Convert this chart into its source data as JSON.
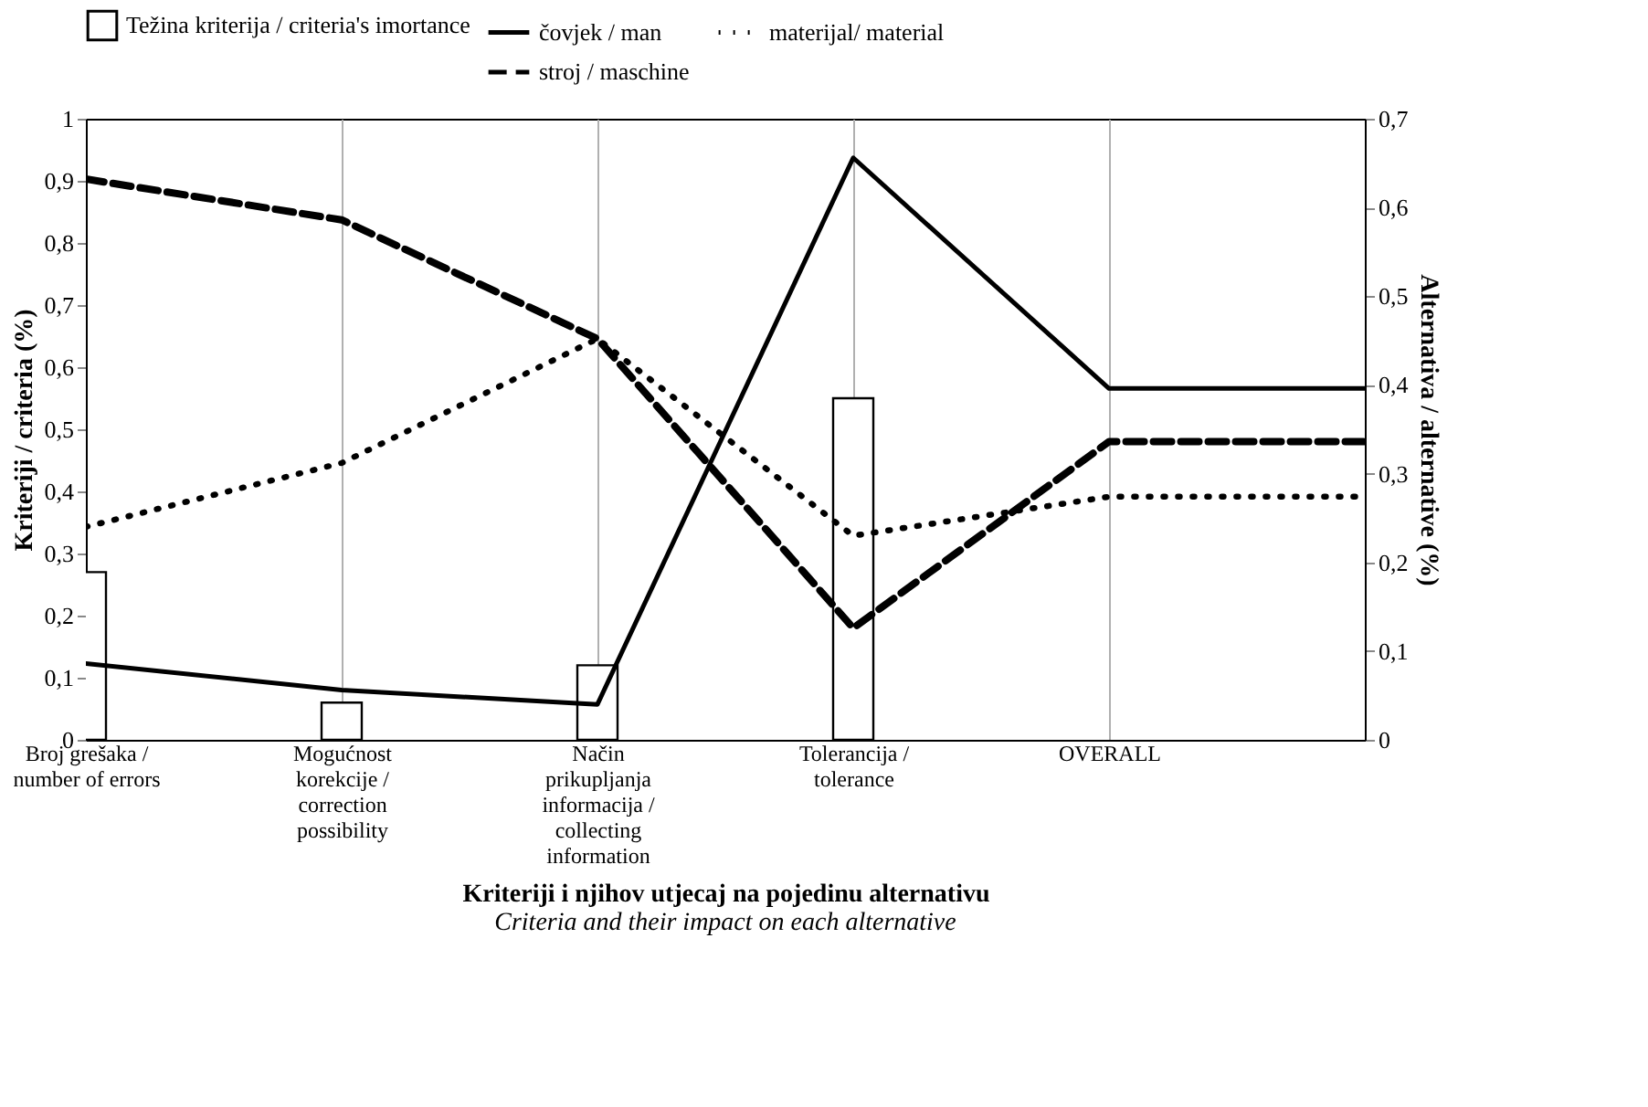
{
  "chart_data": {
    "type": "bar",
    "xlabel": "Kriteriji i njihov utjecaj na pojedinu alternativu",
    "ylabel": "Kriteriji / criteria (%)",
    "y2label": "Alternativa / alternative (%)",
    "annotations": [
      "Criteria and their impact on each alternative"
    ],
    "categories": [
      "Broj grešaka / number of errors",
      "Mogućnost korekcije / correction possibility",
      "Način prikupljanja informacija / collecting information",
      "Tolerancija / tolerance",
      "OVERALL",
      null
    ],
    "series": [
      {
        "name": "Težina kriterija / criteria's imortance",
        "type": "bar",
        "color": "#000000",
        "values": [
          0.27,
          0.06,
          0.12,
          0.55,
          null,
          null
        ]
      },
      {
        "name": "čovjek / man",
        "type": "line",
        "axis": "y2",
        "line_style": "solid",
        "color": "#000000",
        "values": [
          0.086,
          0.056,
          0.04,
          0.656,
          0.396,
          0.396
        ]
      },
      {
        "name": "materijal/ material",
        "type": "line",
        "axis": "y2",
        "line_style": "dotted",
        "color": "#000000",
        "values": [
          0.24,
          0.312,
          0.452,
          0.23,
          0.274,
          0.274
        ]
      },
      {
        "name": "stroj / maschine",
        "type": "line",
        "axis": "y2",
        "line_style": "dashed",
        "color": "#000000",
        "values": [
          0.632,
          0.586,
          0.452,
          0.126,
          0.336,
          0.336
        ]
      }
    ],
    "ylim": [
      0,
      1
    ],
    "yticks": [
      0,
      {
        "value": 0.1,
        "label": "0,1"
      },
      {
        "value": 0.2,
        "label": "0,2"
      },
      {
        "value": 0.3,
        "label": "0,3"
      },
      {
        "value": 0.4,
        "label": "0,4"
      },
      {
        "value": 0.5,
        "label": "0,5"
      },
      {
        "value": 0.6,
        "label": "0,6"
      },
      {
        "value": 0.7,
        "label": "0,7"
      },
      {
        "value": 0.8,
        "label": "0,8"
      },
      {
        "value": 0.9,
        "label": "0,9"
      },
      1
    ],
    "y2lim": [
      0,
      0.7
    ],
    "y2ticks": [
      0,
      {
        "value": 0.1,
        "label": "0,1"
      },
      {
        "value": 0.2,
        "label": "0,2"
      },
      {
        "value": 0.3,
        "label": "0,3"
      },
      {
        "value": 0.4,
        "label": "0,4"
      },
      {
        "value": 0.5,
        "label": "0,5"
      },
      {
        "value": 0.6,
        "label": "0,6"
      },
      {
        "value": 0.7,
        "label": "0,7"
      }
    ],
    "grid": "x",
    "legend": "top"
  }
}
